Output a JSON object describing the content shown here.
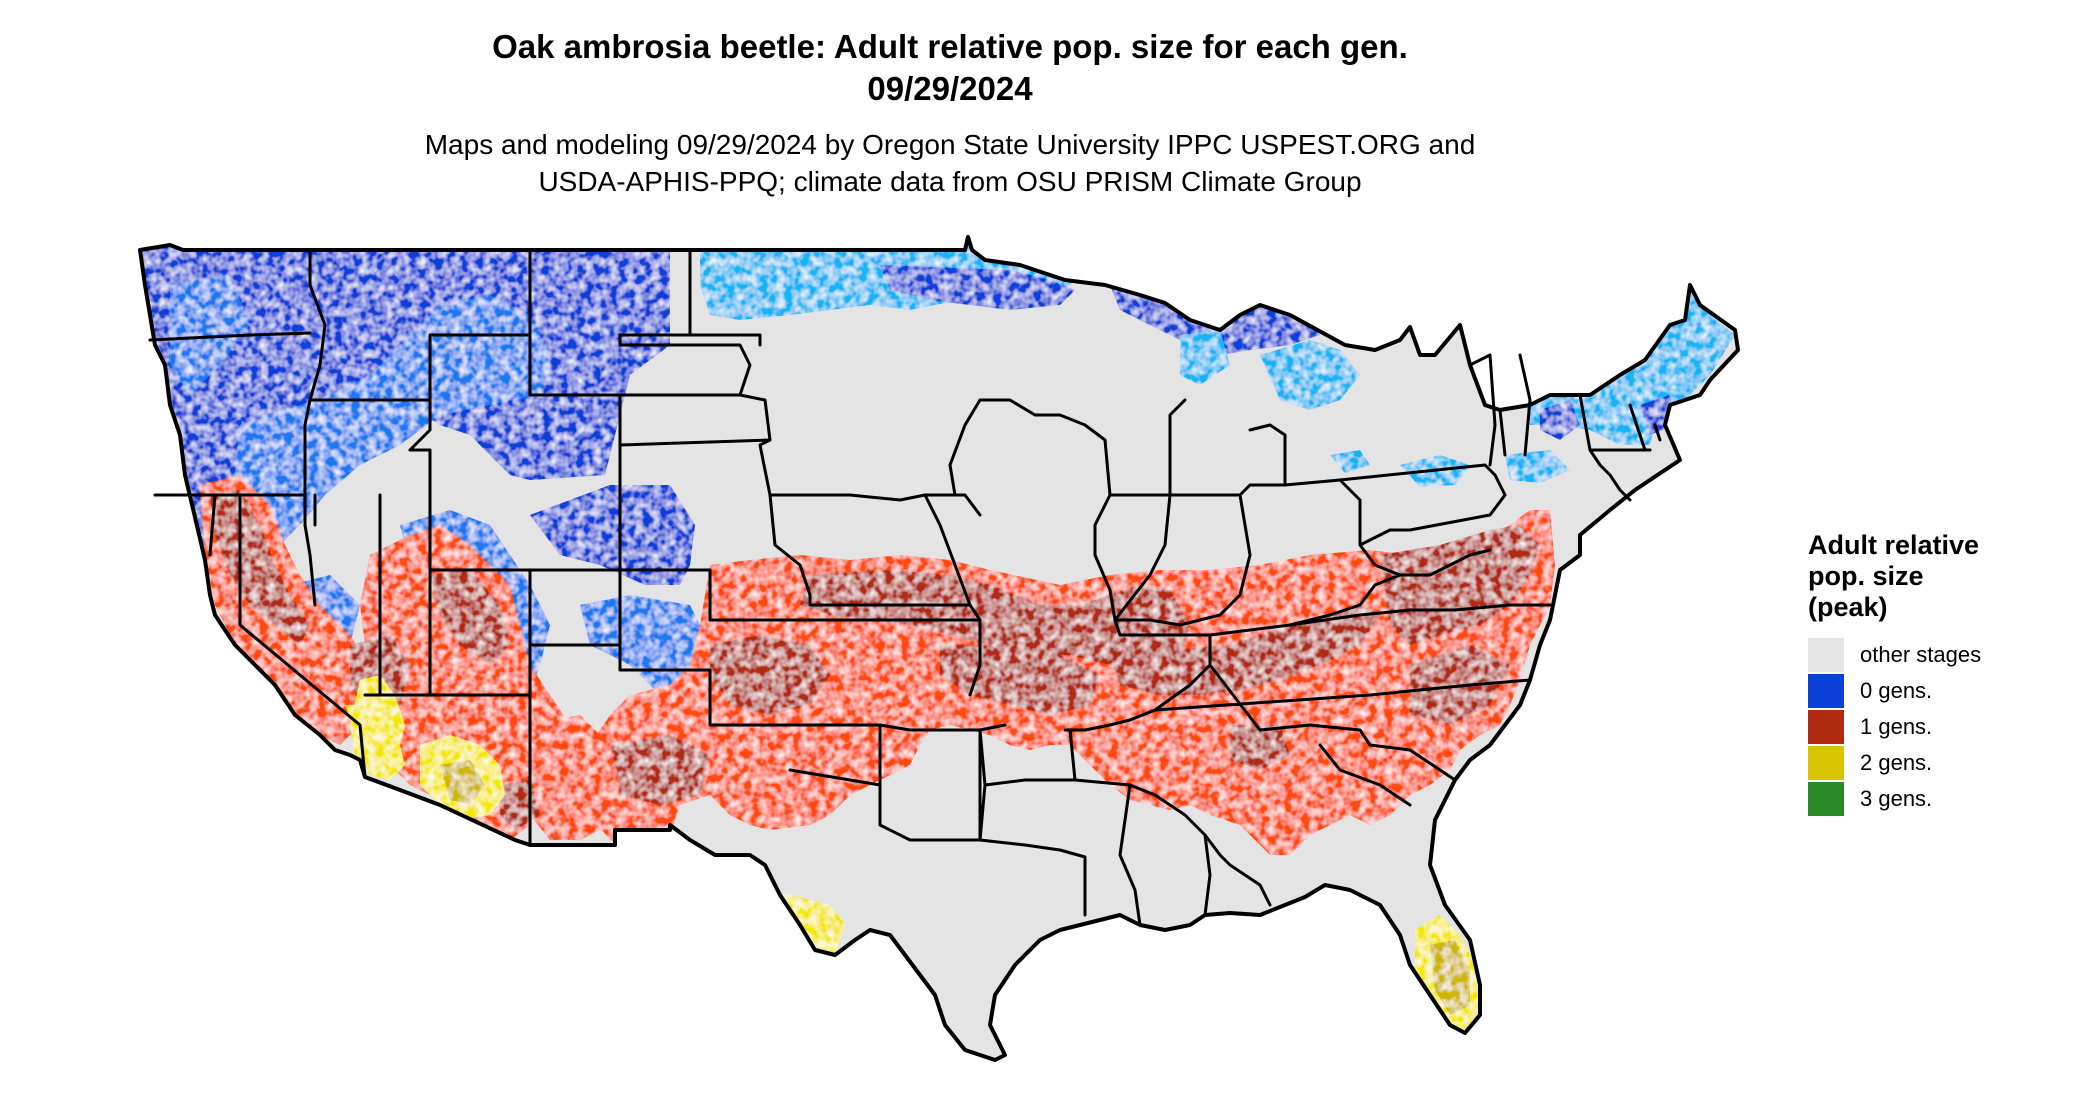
{
  "title": {
    "line1": "Oak ambrosia beetle: Adult relative pop. size for each gen.",
    "line2": "09/29/2024"
  },
  "subtitle": {
    "line1": "Maps and modeling 09/29/2024 by Oregon State University IPPC USPEST.ORG and",
    "line2": "USDA-APHIS-PPQ; climate data from OSU PRISM Climate Group"
  },
  "legend": {
    "title_lines": [
      "Adult relative",
      "pop. size",
      "(peak)"
    ],
    "items": [
      {
        "label": "other stages",
        "color": "#e4e4e4"
      },
      {
        "label": "0 gens.",
        "color": "#0a3fd8"
      },
      {
        "label": "1 gens.",
        "color": "#b12a12"
      },
      {
        "label": "2 gens.",
        "color": "#d8c400"
      },
      {
        "label": "3 gens.",
        "color": "#2a8a2a"
      }
    ]
  },
  "palette": {
    "other": "#e4e4e4",
    "gen0_dark": "#0a3fd8",
    "gen0_mid": "#1e78f0",
    "gen0_light": "#18b4f4",
    "gen1_orange": "#ff4a0a",
    "gen1_dark": "#b12a12",
    "gen2_yellow": "#f5e800",
    "gen2_olive": "#cfb600",
    "border": "#000000"
  }
}
